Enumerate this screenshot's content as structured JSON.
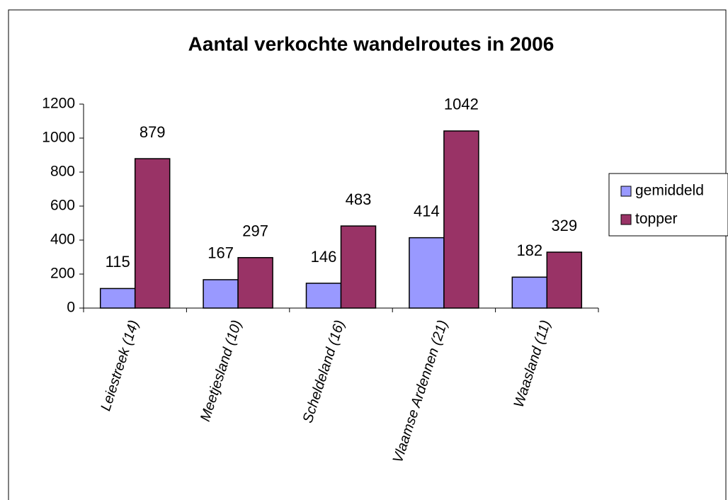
{
  "chart_data": {
    "type": "bar",
    "title": "Aantal verkochte wandelroutes in 2006",
    "categories": [
      "Leiestreek (14)",
      "Meetjesland (10)",
      "Scheldeland (16)",
      "Vlaamse Ardennen (21)",
      "Waasland (11)"
    ],
    "series": [
      {
        "name": "gemiddeld",
        "color": "#9999ff",
        "values": [
          115,
          167,
          146,
          414,
          182
        ]
      },
      {
        "name": "topper",
        "color": "#993366",
        "values": [
          879,
          297,
          483,
          1042,
          329
        ]
      }
    ],
    "ylim": [
      0,
      1200
    ],
    "yticks": [
      0,
      200,
      400,
      600,
      800,
      1000,
      1200
    ],
    "legend": "right"
  }
}
